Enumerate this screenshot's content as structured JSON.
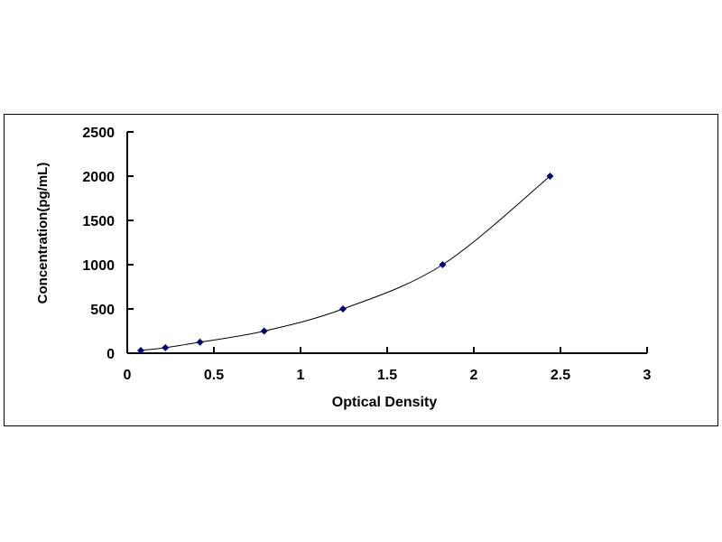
{
  "chart_data": {
    "type": "line",
    "title": "",
    "xlabel": "Optical Density",
    "ylabel": "Concentration(pg/mL)",
    "xlim": [
      0,
      3
    ],
    "ylim": [
      0,
      2500
    ],
    "xticks": [
      "0",
      "0.5",
      "1",
      "1.5",
      "2",
      "2.5",
      "3"
    ],
    "yticks": [
      "0",
      "500",
      "1000",
      "1500",
      "2000",
      "2500"
    ],
    "grid": false,
    "series": [
      {
        "x": [
          0.078,
          0.22,
          0.42,
          0.79,
          1.245,
          1.82,
          2.44
        ],
        "y": [
          31.25,
          62.5,
          125,
          250,
          500,
          1000,
          2000
        ],
        "color": "#000080",
        "marker": "diamond",
        "line": "smooth"
      }
    ]
  }
}
